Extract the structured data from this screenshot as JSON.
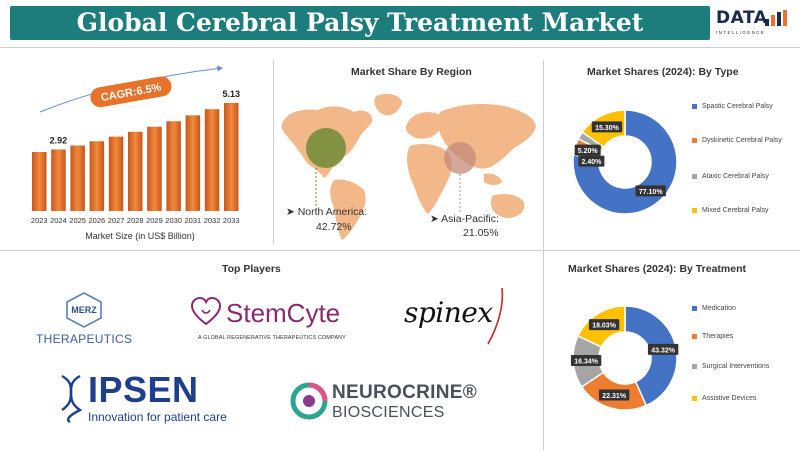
{
  "title": "Global Cerebral Palsy Treatment Market",
  "logo": {
    "word": "DATA",
    "sub": "INTELLIGENCE"
  },
  "market_size": {
    "cagr_label": "CAGR:6.5%",
    "xlabel": "Market Size (in US$ Billion)"
  },
  "region": {
    "title": "Market Share By Region",
    "items": [
      {
        "label": "North America:",
        "value": "42.72%"
      },
      {
        "label": "Asia-Pacific:",
        "value": "21.05%"
      }
    ],
    "colors": {
      "land": "#f3b88a",
      "north_america": "#7a8c3c",
      "asia_pacific": "#c98f7a"
    }
  },
  "type_panel": {
    "title": "Market Shares (2024): By Type"
  },
  "treatment_panel": {
    "title": "Market Shares (2024): By Treatment"
  },
  "top_players": {
    "title": "Top Players",
    "players": [
      {
        "name": "MERZ",
        "sub": "THERAPEUTICS"
      },
      {
        "name": "StemCyte",
        "sub": "A GLOBAL REGENERATIVE THERAPEUTICS COMPANY"
      },
      {
        "name": "spinex"
      },
      {
        "name": "IPSEN",
        "sub": "Innovation for patient care"
      },
      {
        "name": "NEUROCRINE®",
        "sub": "BIOSCIENCES"
      }
    ]
  },
  "chart_data": [
    {
      "type": "bar",
      "categories": [
        "2023",
        "2024",
        "2025",
        "2026",
        "2027",
        "2028",
        "2029",
        "2030",
        "2031",
        "2032",
        "2033"
      ],
      "values": [
        2.8,
        2.92,
        3.11,
        3.31,
        3.53,
        3.76,
        4.0,
        4.26,
        4.54,
        4.83,
        5.13
      ],
      "value_labels": [
        "",
        "2.92",
        "",
        "",
        "",
        "",
        "",
        "",
        "",
        "",
        "5.13"
      ],
      "xlabel": "Market Size (in US$ Billion)",
      "ylim": [
        0,
        5.6
      ],
      "color": "#e8722a"
    },
    {
      "type": "pie",
      "donut": true,
      "labels": [
        "Spastic Cerebral Palsy",
        "Dyskinetic Cerebral Palsy",
        "Ataxic Cerebral Palsy",
        "Mixed Cerebral Palsy"
      ],
      "values": [
        77.1,
        5.2,
        2.4,
        15.3
      ],
      "value_labels": [
        "77.10%",
        "5.20%",
        "2.40%",
        "15.30%"
      ],
      "colors": [
        "#4472c4",
        "#ed7d31",
        "#a5a5a5",
        "#ffc000"
      ],
      "legend": "right"
    },
    {
      "type": "pie",
      "donut": true,
      "labels": [
        "Medication",
        "Therapies",
        "Surgical Interventions",
        "Assistive Devices"
      ],
      "values": [
        43.32,
        22.31,
        16.34,
        18.03
      ],
      "value_labels": [
        "43.32%",
        "22.31%",
        "16.34%",
        "18.03%"
      ],
      "colors": [
        "#4472c4",
        "#ed7d31",
        "#a5a5a5",
        "#ffc000"
      ],
      "legend": "right"
    }
  ]
}
